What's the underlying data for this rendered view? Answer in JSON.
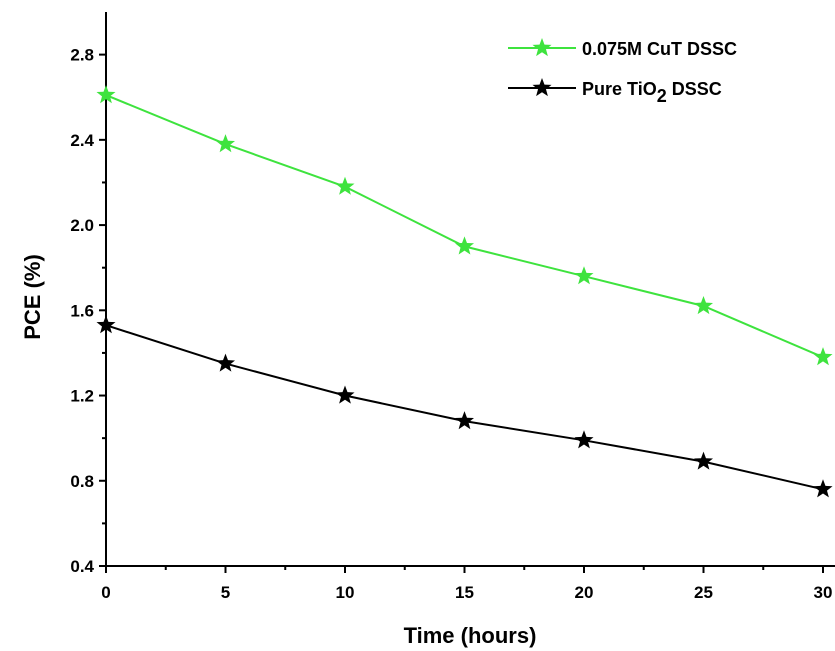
{
  "chart_data": {
    "type": "line",
    "title": "",
    "xlabel": "Time (hours)",
    "ylabel": "PCE (%)",
    "xlim": [
      0,
      30
    ],
    "ylim": [
      0.4,
      3.0
    ],
    "x_ticks": [
      0,
      5,
      10,
      15,
      20,
      25,
      30
    ],
    "x_tick_labels": [
      "0",
      "5",
      "10",
      "15",
      "20",
      "25",
      "30"
    ],
    "y_ticks": [
      0.4,
      0.8,
      1.2,
      1.6,
      2.0,
      2.4,
      2.8
    ],
    "y_tick_labels": [
      "0.4",
      "0.8",
      "1.2",
      "1.6",
      "2.0",
      "2.4",
      "2.8"
    ],
    "grid": false,
    "legend_position": "top-right",
    "x": [
      0,
      5,
      10,
      15,
      20,
      25,
      30
    ],
    "series": [
      {
        "name": "0.075M CuT DSSC",
        "legend_text": "0.075M CuT DSSC",
        "color": "#3ee33e",
        "marker": "star",
        "values": [
          2.61,
          2.38,
          2.18,
          1.9,
          1.76,
          1.62,
          1.38
        ]
      },
      {
        "name": "Pure TiO2 DSSC",
        "legend_text": "Pure TiO",
        "legend_subscript": "2",
        "legend_suffix": " DSSC",
        "color": "#000000",
        "marker": "star",
        "values": [
          1.53,
          1.35,
          1.2,
          1.08,
          0.99,
          0.89,
          0.76
        ]
      }
    ]
  }
}
